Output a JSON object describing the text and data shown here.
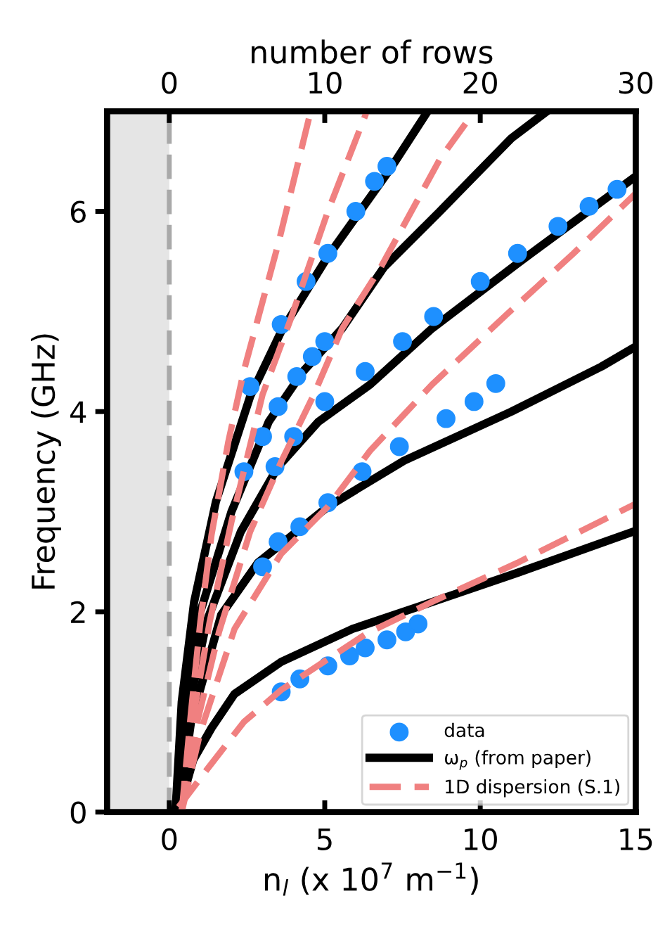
{
  "chart_data": {
    "type": "line",
    "xlabel": "n$_{l}$ (x 10$^{7}$ m$^{−1}$)",
    "ylabel": "Frequency (GHz)",
    "x2label": "number of rows",
    "xlim": [
      -2,
      15
    ],
    "xticks": [
      0,
      5,
      10,
      15
    ],
    "ylim": [
      0,
      7
    ],
    "yticks": [
      0,
      2,
      4,
      6
    ],
    "x2lim": [
      -4,
      30
    ],
    "x2ticks": [
      0,
      10,
      20,
      30
    ],
    "grid": false,
    "legend": "bottom right",
    "ref_lines": [
      {
        "axis": "x",
        "value": 0,
        "color": "#a9a9a9",
        "line_style": "dashed"
      }
    ],
    "bands": [
      {
        "axis": "x",
        "from": -2,
        "to": 0,
        "color": "#e5e5e5"
      }
    ],
    "series": [
      {
        "name": "data",
        "type": "scatter",
        "marker": "circle",
        "color": "#1e90ff",
        "x": [
          2.6,
          3.6,
          4.4,
          5.1,
          6.0,
          6.6,
          7.0,
          2.4,
          3.0,
          3.5,
          4.1,
          4.6,
          5.0,
          3.4,
          4.0,
          5.0,
          6.3,
          7.5,
          8.5,
          10,
          11.2,
          12.5,
          13.5,
          14.4,
          3.0,
          3.5,
          4.2,
          5.1,
          6.2,
          7.4,
          8.9,
          9.8,
          10.5,
          3.6,
          4.2,
          5.1,
          5.8,
          6.3,
          7.0,
          7.6,
          8.0
        ],
        "values": [
          4.25,
          4.87,
          5.3,
          5.58,
          6.0,
          6.3,
          6.45,
          3.4,
          3.75,
          4.05,
          4.35,
          4.55,
          4.7,
          3.45,
          3.75,
          4.1,
          4.4,
          4.7,
          4.95,
          5.3,
          5.58,
          5.85,
          6.05,
          6.22,
          2.45,
          2.7,
          2.85,
          3.09,
          3.4,
          3.65,
          3.93,
          4.1,
          4.28,
          1.2,
          1.33,
          1.46,
          1.56,
          1.64,
          1.72,
          1.8,
          1.88
        ]
      },
      {
        "name": "ω$_{p}$ (from paper)",
        "line_style": "solid",
        "color": "#000000",
        "x": [
          0.2,
          0.4,
          0.8,
          1.5,
          2.6,
          3.6,
          5.1,
          7.1,
          8.27
        ],
        "values": [
          0,
          1.1,
          2.1,
          3.1,
          4.15,
          4.8,
          5.55,
          6.42,
          6.98
        ]
      },
      {
        "line_style": "solid",
        "color": "#000000",
        "x": [
          0.2,
          0.5,
          1.0,
          2.0,
          3.2,
          4.3,
          5.56,
          6.9,
          8.7,
          11,
          12.06
        ],
        "values": [
          0,
          1.1,
          2.0,
          3.0,
          3.9,
          4.4,
          4.83,
          5.44,
          6.0,
          6.73,
          6.98
        ]
      },
      {
        "line_style": "solid",
        "color": "#000000",
        "x": [
          0.2,
          0.6,
          1.2,
          2.3,
          3.5,
          4.8,
          6.46,
          8.45,
          11.2,
          15
        ],
        "values": [
          0,
          1.0,
          1.9,
          2.8,
          3.45,
          3.9,
          4.27,
          4.83,
          5.48,
          6.35
        ]
      },
      {
        "line_style": "solid",
        "color": "#000000",
        "x": [
          0.3,
          0.7,
          1.67,
          2.85,
          5.1,
          7.55,
          11,
          13.9,
          15
        ],
        "values": [
          0,
          0.9,
          1.97,
          2.49,
          3.05,
          3.51,
          4.0,
          4.45,
          4.65
        ]
      },
      {
        "line_style": "solid",
        "color": "#000000",
        "x": [
          0.3,
          0.77,
          1.36,
          2.1,
          3.6,
          5.9,
          8.1,
          11.2,
          15
        ],
        "values": [
          0,
          0.52,
          0.84,
          1.18,
          1.5,
          1.83,
          2.06,
          2.39,
          2.81
        ]
      },
      {
        "name": "1D dispersion (S.1)",
        "line_style": "dashed",
        "color": "#f08080",
        "x": [
          0.4,
          0.7,
          1.0,
          1.36,
          1.9,
          2.4,
          3.5,
          4.5
        ],
        "values": [
          0,
          1.0,
          1.9,
          2.77,
          3.7,
          4.41,
          5.67,
          6.94
        ]
      },
      {
        "line_style": "dashed",
        "color": "#f08080",
        "x": [
          0.4,
          0.8,
          1.3,
          2.0,
          3.0,
          3.9,
          5.1,
          6.33
        ],
        "values": [
          0,
          1.0,
          1.9,
          2.9,
          4.17,
          4.92,
          6.0,
          6.98
        ]
      },
      {
        "line_style": "dashed",
        "color": "#f08080",
        "x": [
          0.4,
          0.9,
          1.6,
          2.6,
          3.6,
          4.65,
          5.56,
          6.8,
          8.7,
          9.7
        ],
        "values": [
          0,
          0.9,
          1.8,
          2.8,
          3.5,
          4.17,
          4.83,
          5.44,
          6.52,
          6.95
        ]
      },
      {
        "line_style": "dashed",
        "color": "#f08080",
        "x": [
          0.4,
          1.0,
          2.1,
          3.6,
          5.1,
          6.46,
          8.45,
          10.85,
          13,
          15
        ],
        "values": [
          0,
          0.8,
          1.83,
          2.58,
          3.05,
          3.61,
          4.27,
          4.97,
          5.58,
          6.18
        ]
      },
      {
        "line_style": "dashed",
        "color": "#f08080",
        "x": [
          0.3,
          1.2,
          2.4,
          3.6,
          6.33,
          8.45,
          11.2,
          15
        ],
        "values": [
          0.05,
          0.42,
          0.9,
          1.22,
          1.78,
          2.1,
          2.49,
          3.08
        ]
      }
    ]
  }
}
